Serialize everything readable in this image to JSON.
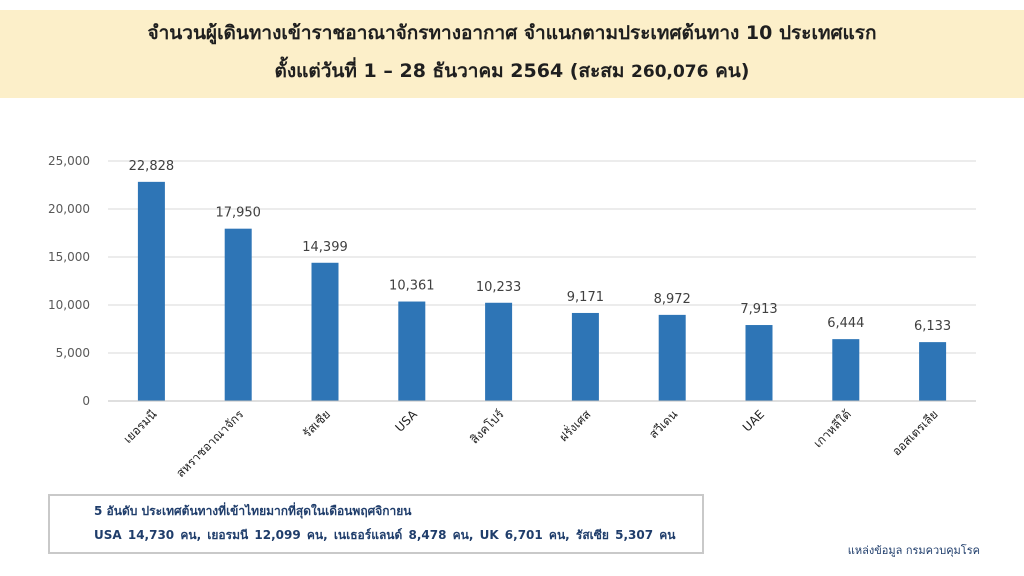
{
  "title": {
    "line1": "จำนวนผู้เดินทางเข้าราชอาณาจักรทางอากาศ จำแนกตามประเทศต้นทาง 10 ประเทศแรก",
    "line2_main": "ตั้งแต่วันที่ 1 – 28  ธันวาคม 2564  (สะสม ",
    "line2_total": "260,076",
    "line2_end": " คน)"
  },
  "chart_data": {
    "type": "bar",
    "categories": [
      "เยอรมนี",
      "สหราชอาณาจักร",
      "รัสเซีย",
      "USA",
      "สิงคโปร์",
      "ฝรั่งเศส",
      "สวีเดน",
      "UAE",
      "เกาหลีใต้",
      "ออสเตรเลีย"
    ],
    "values": [
      22828,
      17950,
      14399,
      10361,
      10233,
      9171,
      8972,
      7913,
      6444,
      6133
    ],
    "value_labels": [
      "22,828",
      "17,950",
      "14,399",
      "10,361",
      "10,233",
      "9,171",
      "8,972",
      "7,913",
      "6,444",
      "6,133"
    ],
    "ylim": [
      0,
      25000
    ],
    "yticks": [
      0,
      5000,
      10000,
      15000,
      20000,
      25000
    ],
    "ytick_labels": [
      "0",
      "5,000",
      "10,000",
      "15,000",
      "20,000",
      "25,000"
    ],
    "grid": true,
    "bar_color": "#2e75b6"
  },
  "note": {
    "title": "5 อันดับ ประเทศต้นทางที่เข้าไทยมากที่สุดในเดือนพฤศจิกายน",
    "text": "USA  14,730  คน,  เยอรมนี  12,099  คน,  เนเธอร์แลนด์  8,478  คน, UK  6,701  คน,  รัสเซีย  5,307  คน"
  },
  "source": "แหล่งข้อมูล กรมควบคุมโรค"
}
